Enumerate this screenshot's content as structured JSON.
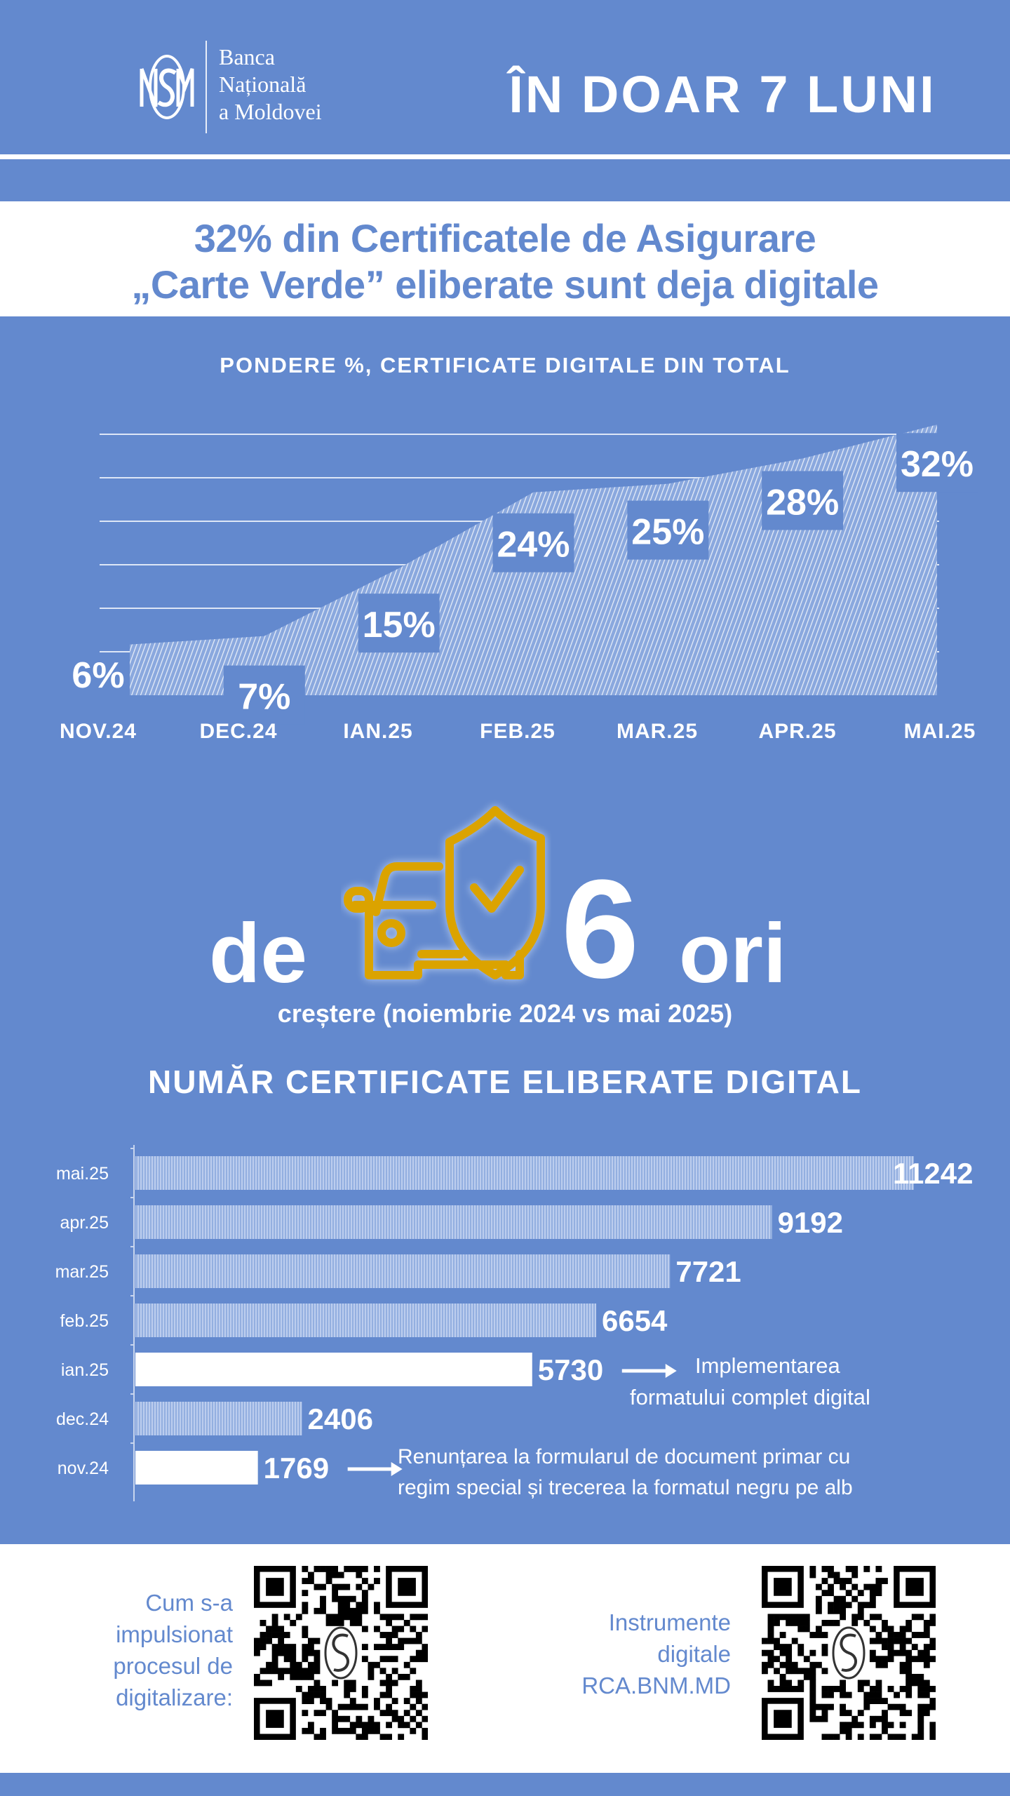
{
  "header": {
    "logo_lines": [
      "Banca",
      "Națională",
      "a Moldovei"
    ],
    "title": "ÎN DOAR 7 LUNI"
  },
  "headline": {
    "line1": "32% din Certificatele de Asigurare",
    "line2": "„Carte Verde”  eliberate sunt deja digitale"
  },
  "highlight": {
    "prefix": "de",
    "number": "6",
    "suffix": "ori",
    "icon": "car-shield-check-icon",
    "icon_color": "#e0a000",
    "subtitle": "creștere (noiembrie 2024 vs mai 2025)"
  },
  "footer": {
    "left_text": [
      "Cum s-a",
      "impulsionat",
      "procesul de",
      "digitalizare:"
    ],
    "right_text": [
      "Instrumente",
      "digitale",
      "RCA.BNM.MD"
    ]
  },
  "colors": {
    "background": "#6389ce",
    "white": "#ffffff",
    "headline": "#6389ce"
  },
  "chart_data": [
    {
      "type": "area",
      "title": "PONDERE %, CERTIFICATE DIGITALE DIN TOTAL",
      "categories": [
        "NOV.24",
        "DEC.24",
        "IAN.25",
        "FEB.25",
        "MAR.25",
        "APR.25",
        "MAI.25"
      ],
      "values": [
        6,
        7,
        15,
        24,
        25,
        28,
        32
      ],
      "labels": [
        "6%",
        "7%",
        "15%",
        "24%",
        "25%",
        "28%",
        "32%"
      ],
      "ylim": [
        0,
        36
      ],
      "grid": true
    },
    {
      "type": "bar",
      "orientation": "horizontal",
      "title": "NUMĂR  CERTIFICATE  ELIBERATE  DIGITAL",
      "categories": [
        "mai.25",
        "apr.25",
        "mar.25",
        "feb.25",
        "ian.25",
        "dec.24",
        "nov.24"
      ],
      "values": [
        11242,
        9192,
        7721,
        6654,
        5730,
        2406,
        1769
      ],
      "highlighted": [
        "ian.25",
        "nov.24"
      ],
      "annotations": [
        {
          "category": "ian.25",
          "lines": [
            "Implementarea",
            "formatului complet digital"
          ]
        },
        {
          "category": "nov.24",
          "lines": [
            "Renunțarea la formularul de document primar cu",
            "regim special și trecerea la formatul negru pe alb"
          ]
        }
      ]
    }
  ]
}
